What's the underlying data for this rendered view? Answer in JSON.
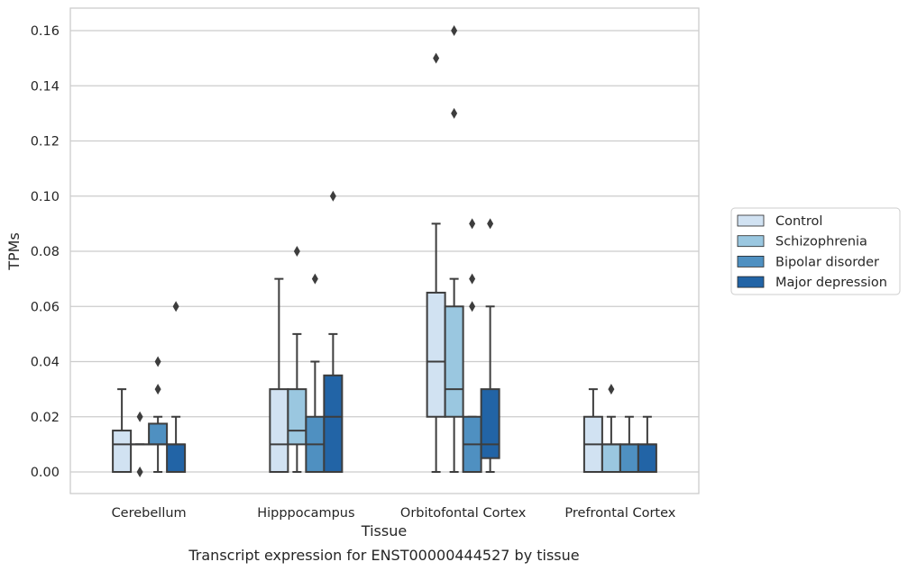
{
  "chart_data": {
    "type": "boxplot",
    "caption": "Transcript expression for ENST00000444527 by tissue",
    "xlabel": "Tissue",
    "ylabel": "TPMs",
    "ylim": [
      -0.008,
      0.168
    ],
    "yticks": [
      "0.00",
      "0.02",
      "0.04",
      "0.06",
      "0.08",
      "0.10",
      "0.12",
      "0.14",
      "0.16"
    ],
    "ytick_values": [
      0,
      0.02,
      0.04,
      0.06,
      0.08,
      0.1,
      0.12,
      0.14,
      0.16
    ],
    "grid": true,
    "legend_position": "right",
    "categories": [
      "Cerebellum",
      "Hipppocampus",
      "Orbitofontal Cortex",
      "Prefrontal Cortex"
    ],
    "series": [
      {
        "name": "Control",
        "color": "#d1e2f2"
      },
      {
        "name": "Schizophrenia",
        "color": "#9ac7e0"
      },
      {
        "name": "Bipolar disorder",
        "color": "#4f90c1"
      },
      {
        "name": "Major depression",
        "color": "#2264a6"
      }
    ],
    "boxes": [
      [
        {
          "whislo": 0,
          "q1": 0,
          "med": 0.01,
          "q3": 0.015,
          "whishi": 0.03,
          "fliers": []
        },
        {
          "whislo": 0.01,
          "q1": 0.01,
          "med": 0.01,
          "q3": 0.01,
          "whishi": 0.01,
          "fliers": [
            0.02,
            0
          ]
        },
        {
          "whislo": 0,
          "q1": 0.01,
          "med": 0.01,
          "q3": 0.0175,
          "whishi": 0.02,
          "fliers": [
            0.04,
            0.03
          ]
        },
        {
          "whislo": 0,
          "q1": 0,
          "med": 0.01,
          "q3": 0.01,
          "whishi": 0.02,
          "fliers": [
            0.06
          ]
        }
      ],
      [
        {
          "whislo": 0,
          "q1": 0,
          "med": 0.01,
          "q3": 0.03,
          "whishi": 0.07,
          "fliers": []
        },
        {
          "whislo": 0,
          "q1": 0.01,
          "med": 0.015,
          "q3": 0.03,
          "whishi": 0.05,
          "fliers": [
            0.08
          ]
        },
        {
          "whislo": 0,
          "q1": 0,
          "med": 0.01,
          "q3": 0.02,
          "whishi": 0.04,
          "fliers": [
            0.07
          ]
        },
        {
          "whislo": 0,
          "q1": 0,
          "med": 0.02,
          "q3": 0.035,
          "whishi": 0.05,
          "fliers": [
            0.1
          ]
        }
      ],
      [
        {
          "whislo": 0,
          "q1": 0.02,
          "med": 0.04,
          "q3": 0.065,
          "whishi": 0.09,
          "fliers": [
            0.15
          ]
        },
        {
          "whislo": 0,
          "q1": 0.02,
          "med": 0.03,
          "q3": 0.06,
          "whishi": 0.07,
          "fliers": [
            0.16,
            0.13
          ]
        },
        {
          "whislo": 0,
          "q1": 0,
          "med": 0.01,
          "q3": 0.02,
          "whishi": 0.02,
          "fliers": [
            0.09,
            0.07,
            0.06
          ]
        },
        {
          "whislo": 0,
          "q1": 0.005,
          "med": 0.01,
          "q3": 0.03,
          "whishi": 0.06,
          "fliers": [
            0.09
          ]
        }
      ],
      [
        {
          "whislo": 0,
          "q1": 0,
          "med": 0.01,
          "q3": 0.02,
          "whishi": 0.03,
          "fliers": []
        },
        {
          "whislo": 0,
          "q1": 0,
          "med": 0.01,
          "q3": 0.01,
          "whishi": 0.02,
          "fliers": [
            0.03
          ]
        },
        {
          "whislo": 0,
          "q1": 0,
          "med": 0.01,
          "q3": 0.01,
          "whishi": 0.02,
          "fliers": []
        },
        {
          "whislo": 0,
          "q1": 0,
          "med": 0.01,
          "q3": 0.01,
          "whishi": 0.02,
          "fliers": []
        }
      ]
    ]
  }
}
